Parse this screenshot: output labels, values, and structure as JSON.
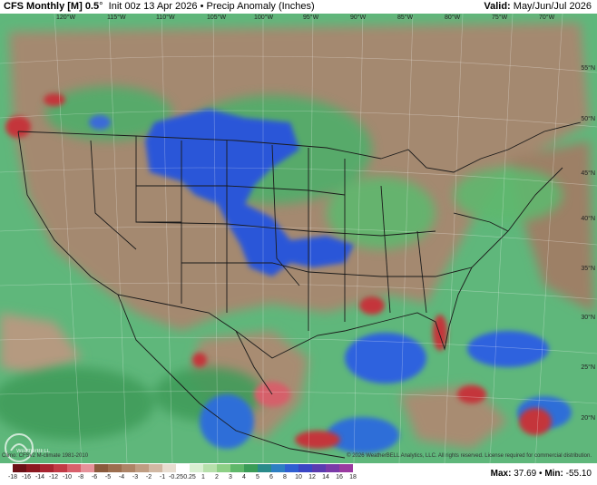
{
  "header": {
    "model": "CFS Monthly [M] 0.5",
    "degree": "°",
    "init": "Init 00z 13 Apr 2026",
    "separator": "•",
    "product": "Precip Anomaly (Inches)",
    "valid_label": "Valid:",
    "valid_value": "May/Jun/Jul 2026"
  },
  "map": {
    "longitudes": [
      "120°W",
      "115°W",
      "110°W",
      "105°W",
      "100°W",
      "95°W",
      "90°W",
      "85°W",
      "80°W",
      "75°W",
      "70°W"
    ],
    "latitudes": [
      "55°N",
      "50°N",
      "45°N",
      "40°N",
      "35°N",
      "30°N",
      "25°N",
      "20°N"
    ],
    "logo_text": "WeatherBELL",
    "colors": {
      "ocean": "#5fb77b",
      "land": "#a4896f",
      "wet": "#2a56d8",
      "very_dry": "#c4343b",
      "borders": "#1a1a1a"
    }
  },
  "footer": {
    "climo": "Climo: CFSv2 M-climate 1981-2010",
    "credit": "© 2026 WeatherBELL Analytics, LLC. All rights reserved. License required for commercial distribution.",
    "max_label": "Max:",
    "max_value": "37.69",
    "min_label": "Min:",
    "min_value": "-55.10",
    "dot": "•"
  },
  "colorbar": {
    "ticks": [
      "-18",
      "-16",
      "-14",
      "-12",
      "-10",
      "-8",
      "-6",
      "-5",
      "-4",
      "-3",
      "-2",
      "-1",
      "-0.25",
      "0.25",
      "1",
      "2",
      "3",
      "4",
      "5",
      "6",
      "8",
      "10",
      "12",
      "14",
      "16",
      "18"
    ],
    "colors": [
      "#6b1016",
      "#8c1820",
      "#a82430",
      "#c23a45",
      "#d8606b",
      "#e6929a",
      "#8a5a3c",
      "#9c6e4e",
      "#ad8466",
      "#bf9d82",
      "#d1b8a3",
      "#e8ddd0",
      "#ffffff",
      "#d9efd2",
      "#b6e0ab",
      "#8ccf85",
      "#5fb76a",
      "#3a9c57",
      "#2a8a8a",
      "#2e7fc2",
      "#2f5fd2",
      "#3a45c4",
      "#5a3bb0",
      "#7a3aa8",
      "#9a3aa0"
    ]
  }
}
